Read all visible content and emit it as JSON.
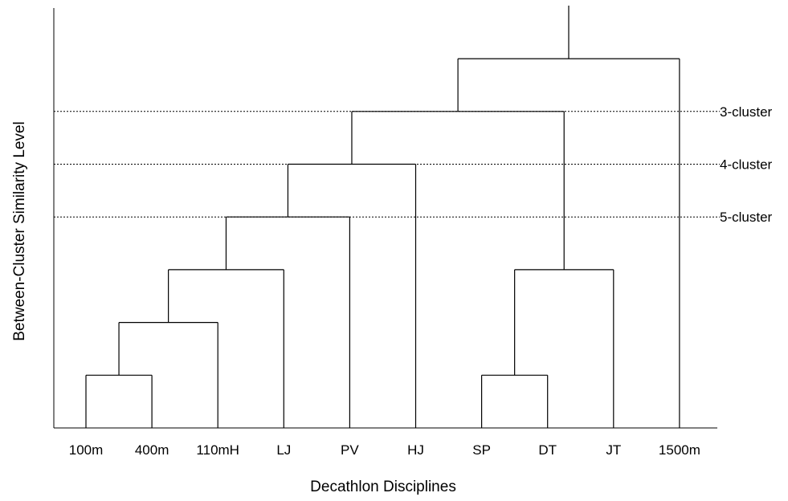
{
  "chart_data": {
    "type": "dendrogram",
    "xlabel": "Decathlon Disciplines",
    "ylabel": "Between-Cluster Similarity Level",
    "leaves": [
      "100m",
      "400m",
      "110mH",
      "LJ",
      "PV",
      "HJ",
      "SP",
      "DT",
      "JT",
      "1500m"
    ],
    "merges": [
      {
        "left": "100m",
        "right": "400m",
        "level": 1
      },
      {
        "left": "SP",
        "right": "DT",
        "level": 1
      },
      {
        "left": "100m+400m",
        "right": "110mH",
        "level": 2
      },
      {
        "left": "100m+400m+110mH",
        "right": "LJ",
        "level": 3
      },
      {
        "left": "SP+DT",
        "right": "JT",
        "level": 3
      },
      {
        "left": "100m+400m+110mH+LJ",
        "right": "PV",
        "level": 4
      },
      {
        "left": "100m+400m+110mH+LJ+PV",
        "right": "HJ",
        "level": 5
      },
      {
        "left": "100m+400m+110mH+LJ+PV+HJ",
        "right": "SP+DT+JT",
        "level": 6
      },
      {
        "left": "100m+400m+110mH+LJ+PV+HJ+SP+DT+JT",
        "right": "1500m",
        "level": 7
      }
    ],
    "reference_lines": [
      {
        "label": "3-cluster",
        "level": 6
      },
      {
        "label": "4-cluster",
        "level": 5
      },
      {
        "label": "5-cluster",
        "level": 4
      }
    ],
    "grid": false
  }
}
